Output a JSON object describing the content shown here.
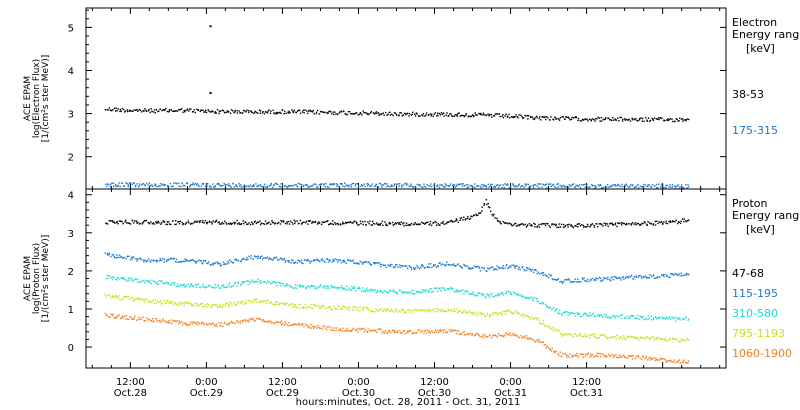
{
  "x_axis": {
    "tick_labels": [
      {
        "time": "12:00",
        "date": "Oct.28"
      },
      {
        "time": "0:00",
        "date": "Oct.29"
      },
      {
        "time": "12:00",
        "date": "Oct.29"
      },
      {
        "time": "0:00",
        "date": "Oct.30"
      },
      {
        "time": "12:00",
        "date": "Oct.30"
      },
      {
        "time": "0:00",
        "date": "Oct.31"
      },
      {
        "time": "12:00",
        "date": "Oct.31"
      }
    ],
    "label": "hours:minutes, Oct. 28, 2011 - Oct. 31, 2011"
  },
  "chart_data": [
    {
      "type": "scatter",
      "panel": "electron",
      "ylabel_lines": [
        "ACE EPAM",
        "log(Electron Flux)",
        "[1/(cm²s ster MeV)]"
      ],
      "yticks": [
        "2",
        "3",
        "4",
        "5"
      ],
      "ylim": [
        1.25,
        5.45
      ],
      "xlim_hours": [
        5.0,
        106.0
      ],
      "legend_title": [
        "Electron",
        "Energy range",
        "[keV]"
      ],
      "series": [
        {
          "name": "38-53",
          "color": "#000000",
          "x_hours": [
            8,
            12,
            16,
            20,
            24,
            28,
            32,
            36,
            40,
            44,
            48,
            52,
            56,
            60,
            64,
            68,
            72,
            76,
            80,
            84,
            88,
            92,
            96,
            100
          ],
          "values": [
            3.12,
            3.09,
            3.08,
            3.09,
            3.07,
            3.06,
            3.05,
            3.06,
            3.05,
            3.04,
            3.03,
            3.01,
            3.0,
            3.0,
            2.99,
            2.98,
            2.95,
            2.92,
            2.9,
            2.89,
            2.88,
            2.88,
            2.87,
            2.88
          ],
          "outliers": [
            {
              "x_hours": 24.5,
              "value": 5.05
            },
            {
              "x_hours": 24.5,
              "value": 3.5
            }
          ]
        },
        {
          "name": "175-315",
          "color": "#1878d0",
          "x_hours": [
            8,
            16,
            24,
            32,
            40,
            48,
            56,
            64,
            72,
            80,
            88,
            96,
            100
          ],
          "values": [
            1.37,
            1.36,
            1.36,
            1.35,
            1.35,
            1.36,
            1.35,
            1.34,
            1.34,
            1.34,
            1.33,
            1.33,
            1.32
          ]
        }
      ]
    },
    {
      "type": "scatter",
      "panel": "proton",
      "ylabel_lines": [
        "ACE EPAM",
        "log(Proton Flux)",
        "[1/(cm²s ster MeV)]"
      ],
      "yticks": [
        "0",
        "1",
        "2",
        "3",
        "4"
      ],
      "ylim": [
        -0.55,
        4.15
      ],
      "xlim_hours": [
        5.0,
        106.0
      ],
      "legend_title": [
        "Proton",
        "Energy range",
        "[keV]"
      ],
      "series": [
        {
          "name": "47-68",
          "color": "#000000",
          "x_hours": [
            8,
            14,
            20,
            26,
            32,
            38,
            44,
            50,
            56,
            62,
            67,
            68,
            69,
            70,
            74,
            80,
            86,
            92,
            98,
            100
          ],
          "values": [
            3.3,
            3.3,
            3.28,
            3.3,
            3.28,
            3.3,
            3.28,
            3.27,
            3.25,
            3.27,
            3.5,
            3.85,
            3.55,
            3.3,
            3.22,
            3.2,
            3.22,
            3.25,
            3.3,
            3.35
          ]
        },
        {
          "name": "115-195",
          "color": "#1878d0",
          "x_hours": [
            8,
            14,
            20,
            26,
            32,
            38,
            44,
            50,
            56,
            62,
            68,
            72,
            76,
            80,
            86,
            92,
            98,
            100
          ],
          "values": [
            2.45,
            2.3,
            2.3,
            2.2,
            2.4,
            2.25,
            2.3,
            2.2,
            2.1,
            2.2,
            2.05,
            2.15,
            2.0,
            1.75,
            1.8,
            1.85,
            1.9,
            1.92
          ]
        },
        {
          "name": "310-580",
          "color": "#20d8d0",
          "x_hours": [
            8,
            14,
            20,
            26,
            32,
            38,
            44,
            50,
            56,
            62,
            68,
            72,
            76,
            80,
            86,
            92,
            98,
            100
          ],
          "values": [
            1.85,
            1.75,
            1.65,
            1.6,
            1.75,
            1.6,
            1.6,
            1.5,
            1.45,
            1.55,
            1.35,
            1.45,
            1.25,
            0.9,
            0.85,
            0.8,
            0.75,
            0.75
          ]
        },
        {
          "name": "795-1193",
          "color": "#c8e020",
          "x_hours": [
            8,
            14,
            20,
            26,
            32,
            38,
            44,
            50,
            56,
            62,
            68,
            72,
            76,
            80,
            86,
            92,
            98,
            100
          ],
          "values": [
            1.35,
            1.25,
            1.15,
            1.1,
            1.25,
            1.1,
            1.05,
            1.0,
            0.95,
            1.0,
            0.85,
            0.95,
            0.75,
            0.35,
            0.3,
            0.25,
            0.2,
            0.2
          ]
        },
        {
          "name": "1060-1900",
          "color": "#f08020",
          "x_hours": [
            8,
            14,
            20,
            26,
            32,
            38,
            44,
            50,
            56,
            62,
            68,
            72,
            76,
            80,
            86,
            92,
            98,
            100
          ],
          "values": [
            0.85,
            0.75,
            0.65,
            0.6,
            0.75,
            0.6,
            0.5,
            0.45,
            0.4,
            0.45,
            0.3,
            0.35,
            0.2,
            -0.2,
            -0.2,
            -0.25,
            -0.35,
            -0.35
          ]
        }
      ]
    }
  ]
}
